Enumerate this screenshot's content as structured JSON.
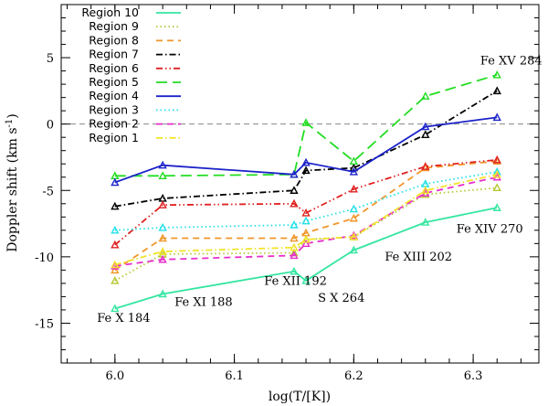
{
  "chart_data": {
    "type": "line",
    "xlabel": "log(T/[K])",
    "ylabel": "Doppler shift (km s",
    "ylabel_superscript": "-1",
    "ylabel_close": ")",
    "xlim": [
      5.955,
      6.355
    ],
    "ylim": [
      -18,
      9
    ],
    "x_ticks": [
      6.0,
      6.1,
      6.2,
      6.3
    ],
    "x_tick_labels": [
      "6.0",
      "6.1",
      "6.2",
      "6.3"
    ],
    "y_ticks": [
      -15,
      -10,
      -5,
      0,
      5
    ],
    "y_tick_labels": [
      "-15",
      "-10",
      "-5",
      "0",
      "5"
    ],
    "zero_line": true,
    "x": [
      6.0,
      6.04,
      6.15,
      6.16,
      6.2,
      6.26,
      6.32
    ],
    "series": [
      {
        "name": "Region 10",
        "color": "#33e6a0",
        "dash": "solid",
        "values": [
          -13.9,
          -12.8,
          -11.1,
          -11.8,
          -9.5,
          -7.4,
          -6.3
        ]
      },
      {
        "name": "Region 9",
        "color": "#b5c832",
        "dash": "dot",
        "values": [
          -11.8,
          -9.8,
          -9.7,
          -8.7,
          -8.5,
          -5.3,
          -4.8
        ]
      },
      {
        "name": "Region 8",
        "color": "#f0962a",
        "dash": "dash",
        "values": [
          -11.0,
          -8.6,
          -8.6,
          -8.2,
          -7.1,
          -3.3,
          -2.8
        ]
      },
      {
        "name": "Region 7",
        "color": "#000000",
        "dash": "dashdot",
        "values": [
          -6.2,
          -5.6,
          -5.0,
          -3.5,
          -3.3,
          -0.8,
          2.5
        ]
      },
      {
        "name": "Region 6",
        "color": "#e02020",
        "dash": "dashdotdot",
        "values": [
          -9.1,
          -6.1,
          -6.0,
          -6.7,
          -4.9,
          -3.2,
          -2.7
        ]
      },
      {
        "name": "Region 5",
        "color": "#22dd22",
        "dash": "longdash",
        "values": [
          -3.9,
          -3.9,
          -3.8,
          0.1,
          -2.8,
          2.1,
          3.7
        ]
      },
      {
        "name": "Region 4",
        "color": "#1b22c8",
        "dash": "solid",
        "values": [
          -4.4,
          -3.1,
          -3.8,
          -2.9,
          -3.6,
          -0.2,
          0.5
        ]
      },
      {
        "name": "Region 3",
        "color": "#22e0e8",
        "dash": "dot",
        "values": [
          -8.0,
          -7.8,
          -7.6,
          -7.3,
          -6.4,
          -4.5,
          -3.6
        ]
      },
      {
        "name": "Region 2",
        "color": "#e62ecb",
        "dash": "dash",
        "values": [
          -10.7,
          -10.2,
          -9.9,
          -9.0,
          -8.4,
          -5.2,
          -4.0
        ]
      },
      {
        "name": "Region 1",
        "color": "#f2e42a",
        "dash": "dashdot",
        "values": [
          -10.6,
          -9.6,
          -9.3,
          -8.7,
          -8.5,
          -5.0,
          -3.8
        ]
      }
    ],
    "annotations": [
      {
        "text": "Fe X 184",
        "x": 5.985,
        "y": -14.9
      },
      {
        "text": "Fe XI 188",
        "x": 6.05,
        "y": -13.7
      },
      {
        "text": "Fe XII 192",
        "x": 6.125,
        "y": -12.1
      },
      {
        "text": "S X 264",
        "x": 6.17,
        "y": -13.4
      },
      {
        "text": "Fe XIII 202",
        "x": 6.226,
        "y": -10.3
      },
      {
        "text": "Fe XIV 270",
        "x": 6.286,
        "y": -8.2
      },
      {
        "text": "Fe XV 284",
        "x": 6.306,
        "y": 4.5
      }
    ],
    "legend_position": "top-left"
  }
}
